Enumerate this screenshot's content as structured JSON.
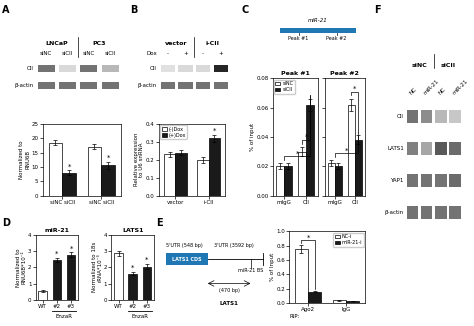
{
  "chart_data": [
    {
      "type": "blot",
      "annotations": [
        "A"
      ],
      "groups": [
        "LNCaP",
        "PC3"
      ],
      "columns": [
        "siNC",
        "siCII",
        "siNC",
        "siCII"
      ],
      "rows": [
        "CII",
        "β-actin"
      ],
      "cells": [
        [
          0.45,
          0.85,
          0.45,
          0.72
        ],
        [
          0.45,
          0.45,
          0.45,
          0.45
        ]
      ]
    },
    {
      "type": "bar",
      "categories": [
        "siNC siCII",
        "siNC siCII"
      ],
      "series": [
        {
          "color": "#FFFFFF",
          "values": [
            18.5,
            17.0
          ],
          "errors": [
            1.0,
            0.9
          ]
        },
        {
          "color": "#1a1a1a",
          "values": [
            8.0,
            10.5
          ],
          "errors": [
            0.8,
            1.1
          ],
          "significance": [
            "*",
            "*"
          ]
        }
      ],
      "ylabel": "Normalized to\nRNU6B",
      "ylim": [
        0,
        25
      ],
      "yticks": [
        0,
        5,
        10,
        15,
        20,
        25
      ]
    },
    {
      "type": "blot",
      "annotations": [
        "B"
      ],
      "groups": [
        "vector",
        "i-CII"
      ],
      "column_title": "Dox",
      "columns": [
        "-",
        "+",
        "-",
        "+"
      ],
      "rows": [
        "CII",
        "β-actin"
      ],
      "cells": [
        [
          0.88,
          0.85,
          0.85,
          0.15
        ],
        [
          0.45,
          0.45,
          0.45,
          0.45
        ]
      ]
    },
    {
      "type": "bar",
      "categories": [
        "vector",
        "i-CII"
      ],
      "series": [
        {
          "name": "(-)Dox",
          "color": "#FFFFFF",
          "values": [
            0.23,
            0.2
          ],
          "errors": [
            0.015,
            0.018
          ]
        },
        {
          "name": "(+)Dox",
          "color": "#1a1a1a",
          "values": [
            0.24,
            0.32
          ],
          "errors": [
            0.015,
            0.02
          ],
          "significance": [
            null,
            "*"
          ]
        }
      ],
      "legend": "upper left",
      "ylabel": "Relative expression\nto U6 snRNA",
      "ylim": [
        0,
        0.4
      ],
      "yticks": [
        0.0,
        0.1,
        0.2,
        0.3,
        0.4
      ]
    },
    {
      "type": "track",
      "annotations": [
        "C"
      ],
      "title": "miR-21",
      "peaks": [
        "Peak #1",
        "Peak #2"
      ]
    },
    {
      "type": "bar",
      "title": "Peak #1",
      "categories": [
        "mIgG",
        "CII"
      ],
      "series": [
        {
          "name": "siNC",
          "color": "#FFFFFF",
          "values": [
            0.02,
            0.03
          ],
          "errors": [
            0.002,
            0.003
          ]
        },
        {
          "name": "siCII",
          "color": "#1a1a1a",
          "values": [
            0.02,
            0.062
          ],
          "errors": [
            0.002,
            0.004
          ]
        }
      ],
      "brackets": [
        {
          "from": [
            0,
            null
          ],
          "to": [
            1,
            1
          ],
          "text": "*"
        },
        {
          "from": [
            1,
            0
          ],
          "to": [
            1,
            1
          ],
          "text": "*"
        }
      ],
      "legend": "upper left",
      "ylabel": "% of input",
      "ylim": [
        0.0,
        0.08
      ],
      "yticks": [
        {
          "value": 0.0,
          "label": "0.00"
        },
        0.02,
        0.04,
        0.06,
        0.08
      ]
    },
    {
      "type": "bar",
      "title": "Peak #2",
      "categories": [
        "mIgG",
        "CII"
      ],
      "series": [
        {
          "color": "#FFFFFF",
          "values": [
            0.022,
            0.062
          ],
          "errors": [
            0.002,
            0.004
          ]
        },
        {
          "color": "#1a1a1a",
          "values": [
            0.02,
            0.038
          ],
          "errors": [
            0.002,
            0.003
          ]
        }
      ],
      "brackets": [
        {
          "from": [
            0,
            null
          ],
          "to": [
            1,
            1
          ],
          "text": "*"
        },
        {
          "from": [
            1,
            0
          ],
          "to": [
            1,
            1
          ],
          "text": "*"
        }
      ],
      "tick_labels": "x",
      "ylim": [
        0.0,
        0.08
      ],
      "yticks": [
        {
          "value": 0.0,
          "label": "0.00"
        },
        0.02,
        0.04,
        0.06,
        0.08
      ]
    },
    {
      "type": "bar",
      "annotations": [
        "D"
      ],
      "title": "miR-21",
      "categories": [
        "WT",
        "#2",
        "#3"
      ],
      "values": [
        0.55,
        2.45,
        2.78
      ],
      "colors": [
        "#FFFFFF",
        "#1a1a1a",
        "#1a1a1a"
      ],
      "errors": [
        0.06,
        0.15,
        0.13
      ],
      "significance": [
        null,
        "*",
        "*"
      ],
      "group_labels": [
        {
          "label": "EnzaR",
          "span": [
            1,
            2
          ]
        }
      ],
      "ylabel": "Normalized to\nRNU6B*10⁻²",
      "ylim": [
        0,
        4
      ],
      "yticks": [
        0,
        1,
        2,
        3,
        4
      ]
    },
    {
      "type": "bar",
      "title": "LATS1",
      "categories": [
        "WT",
        "#2",
        "#3"
      ],
      "values": [
        2.85,
        1.62,
        2.05
      ],
      "colors": [
        "#FFFFFF",
        "#1a1a1a",
        "#1a1a1a"
      ],
      "errors": [
        0.18,
        0.12,
        0.15
      ],
      "significance": [
        null,
        "*",
        "*"
      ],
      "group_labels": [
        {
          "label": "EnzaR",
          "span": [
            1,
            2
          ]
        }
      ],
      "ylabel": "Normalized to 18s\nrRNA*10⁻³",
      "ylim": [
        0,
        4
      ],
      "yticks": [
        0,
        1,
        2,
        3,
        4
      ]
    },
    {
      "type": "schematic",
      "annotations": [
        "E"
      ],
      "title": "LATS1",
      "utr_labels": [
        "5'UTR (548 bp)",
        "3'UTR (3592 bp)"
      ],
      "cds_label": "LATS1 CDS",
      "site_label": "miR-21 BS",
      "span_label": "(470 bp)"
    },
    {
      "type": "bar",
      "categories": [
        "Ago2",
        "IgG"
      ],
      "series": [
        {
          "name": "NC-i",
          "color": "#FFFFFF",
          "values": [
            0.76,
            0.04
          ],
          "errors": [
            0.055,
            0.006
          ]
        },
        {
          "name": "miR-21-i",
          "color": "#1a1a1a",
          "values": [
            0.16,
            0.03
          ],
          "errors": [
            0.01,
            0.004
          ]
        }
      ],
      "brackets": [
        {
          "from": [
            0,
            0
          ],
          "to": [
            0,
            1
          ],
          "text": "*"
        }
      ],
      "legend": "upper right",
      "xlabel": "RIP:",
      "ylabel": "% of Input",
      "ylim": [
        0.0,
        1.0
      ],
      "yticks": [
        0.0,
        0.2,
        0.4,
        0.6,
        0.8,
        1.0
      ]
    },
    {
      "type": "blot",
      "annotations": [
        "F"
      ],
      "groups": [
        "siNC",
        "siCII"
      ],
      "columns": [
        "NC",
        "miR-21",
        "NC",
        "miR-21"
      ],
      "rows": [
        "CII",
        "LATS1",
        "YAP1",
        "β-actin"
      ],
      "cells": [
        [
          0.45,
          0.55,
          0.72,
          0.78
        ],
        [
          0.5,
          0.65,
          0.35,
          0.42
        ],
        [
          0.45,
          0.45,
          0.45,
          0.42
        ],
        [
          0.45,
          0.45,
          0.45,
          0.45
        ]
      ]
    }
  ]
}
